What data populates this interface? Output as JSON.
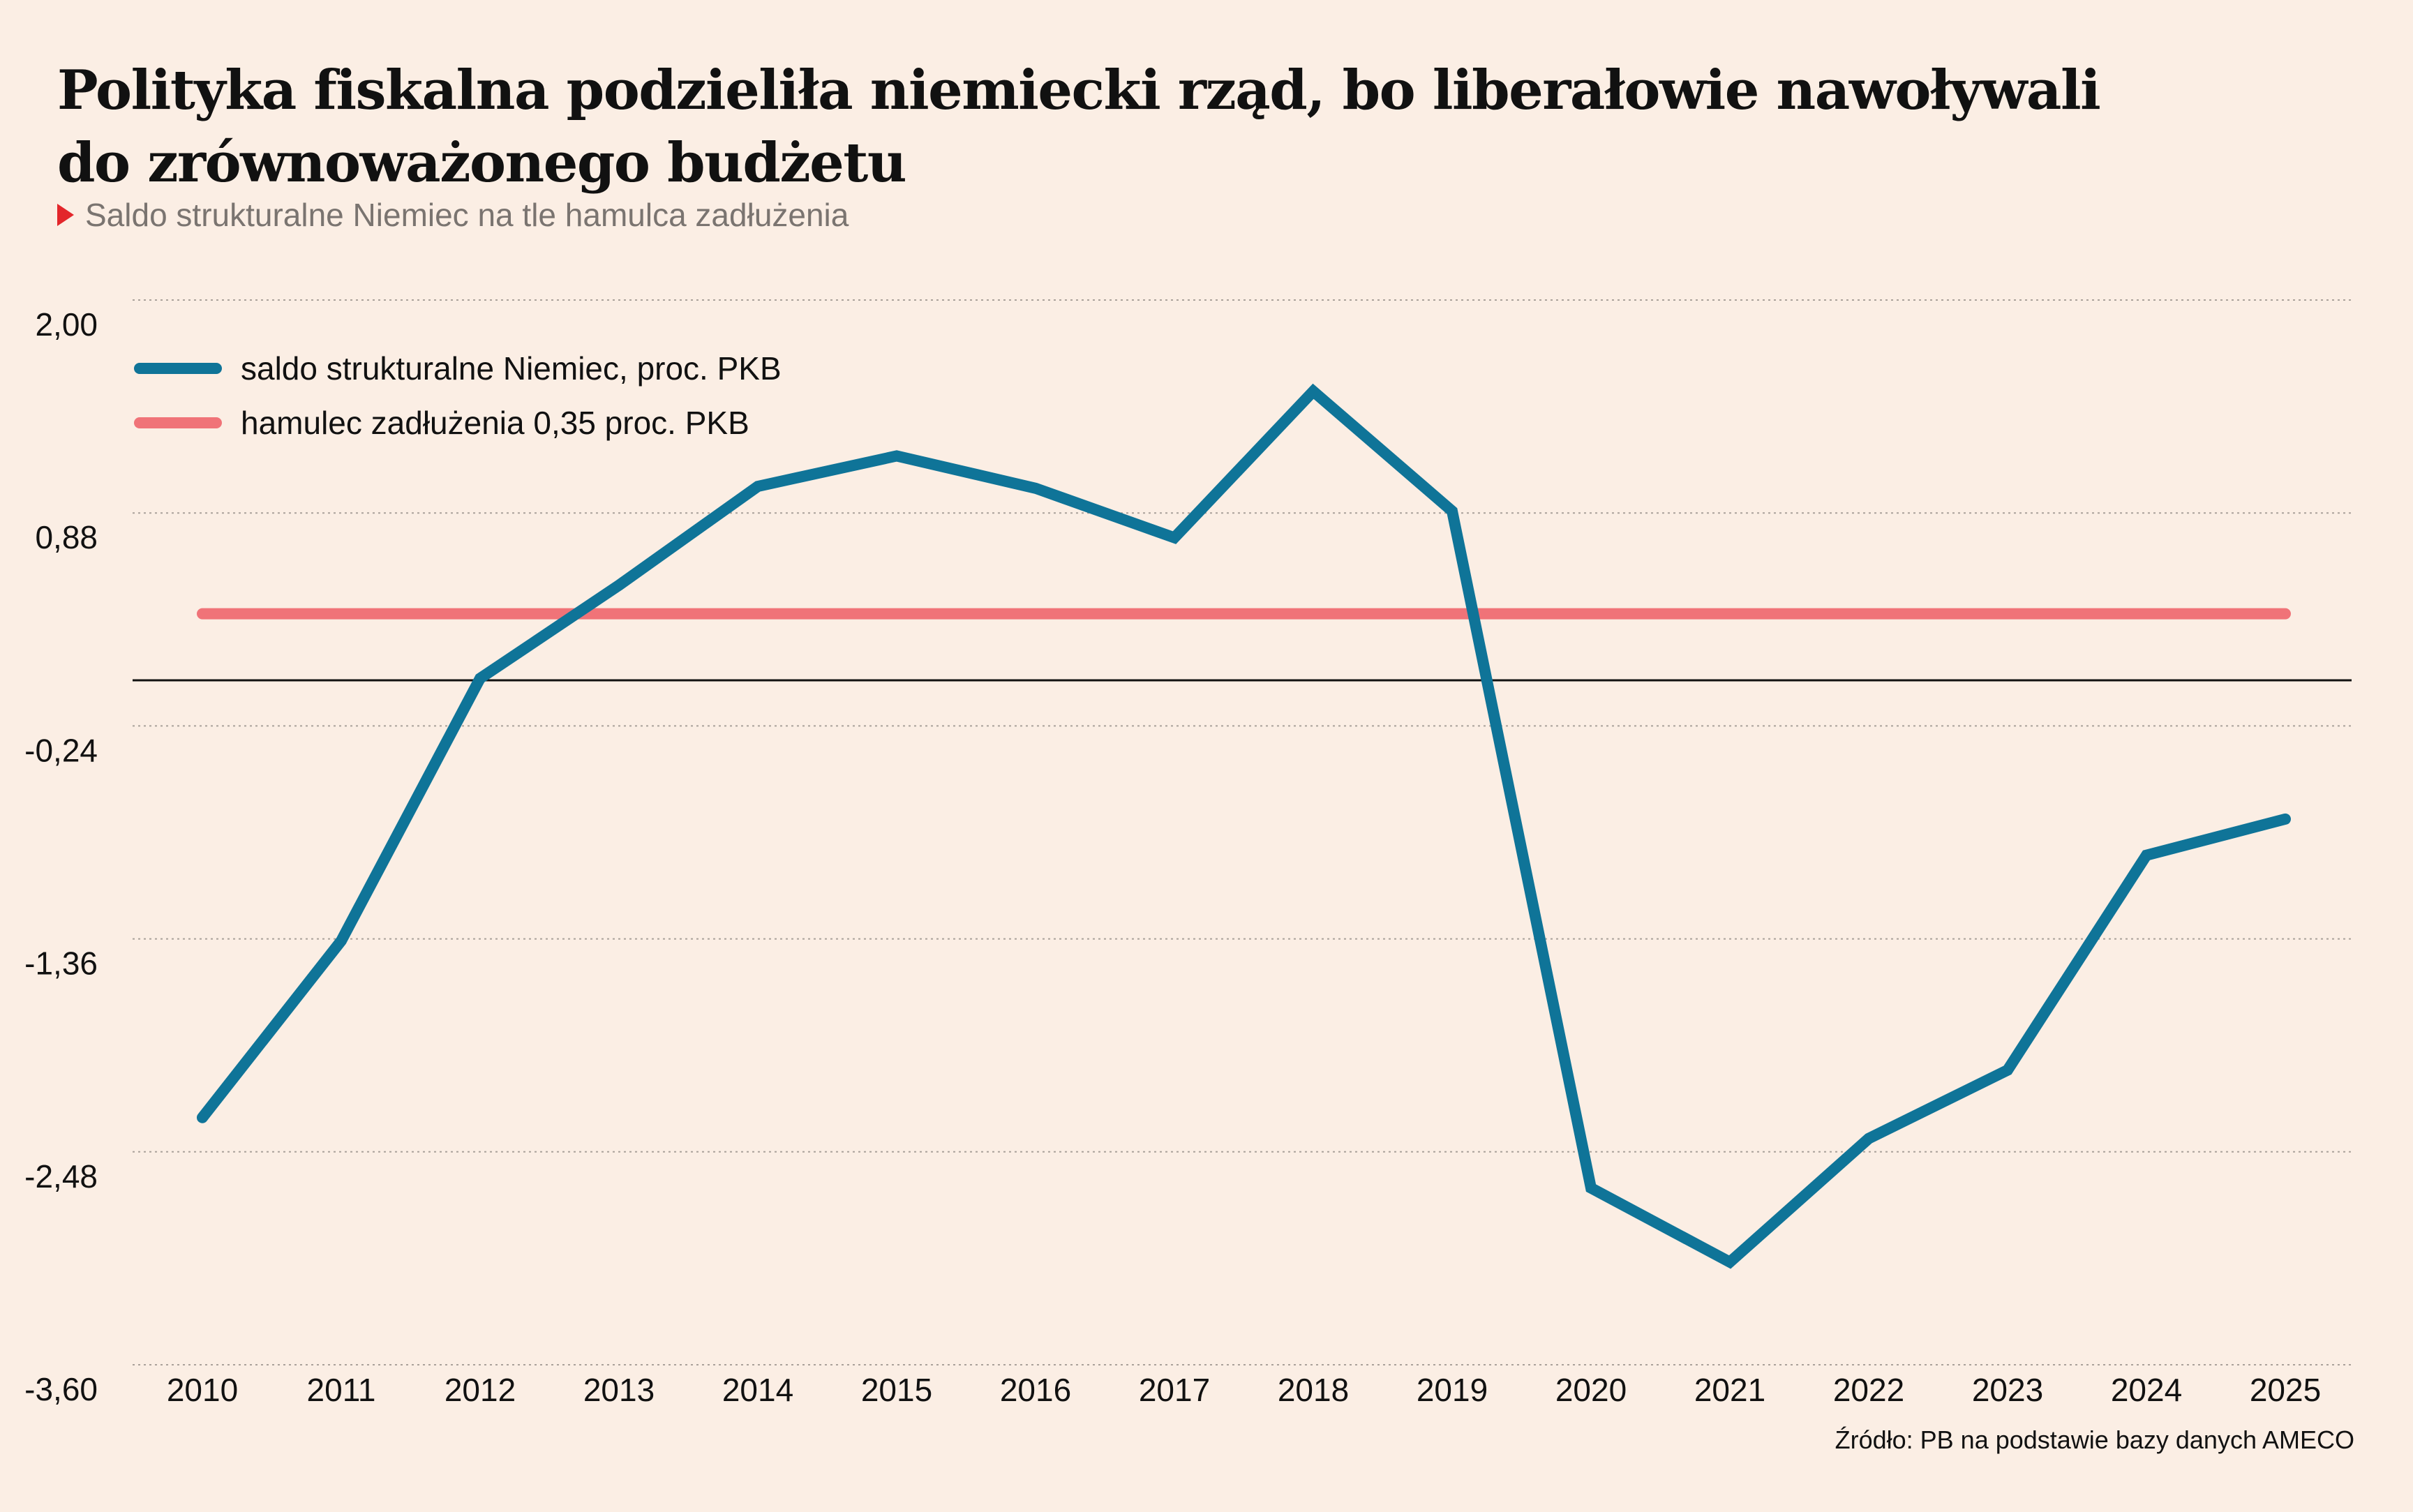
{
  "header": {
    "title_line1": "Polityka fiskalna podzieliła niemiecki rząd, bo liberałowie nawoływali",
    "title_line2": "do zrównoważonego budżetu",
    "subtitle": "Saldo strukturalne Niemiec na tle hamulca zadłużenia"
  },
  "source": "Źródło: PB na podstawie bazy danych AMECO",
  "chart_data": {
    "type": "line",
    "title": "Polityka fiskalna podzieliła niemiecki rząd, bo liberałowie nawoływali do zrównoważonego budżetu",
    "subtitle": "Saldo strukturalne Niemiec na tle hamulca zadłużenia",
    "x": [
      2010,
      2011,
      2012,
      2013,
      2014,
      2015,
      2016,
      2017,
      2018,
      2019,
      2020,
      2021,
      2022,
      2023,
      2024,
      2025
    ],
    "x_tick_labels": [
      "2010",
      "2011",
      "2012",
      "2013",
      "2014",
      "2015",
      "2016",
      "2017",
      "2018",
      "2019",
      "2020",
      "2021",
      "2022",
      "2023",
      "2024",
      "2025"
    ],
    "ylim": [
      -3.6,
      2.0
    ],
    "y_ticks": [
      2.0,
      0.88,
      -0.24,
      -1.36,
      -2.48,
      -3.6
    ],
    "y_tick_labels": [
      "2,00",
      "0,88",
      "-0,24",
      "-1,36",
      "-2,48",
      "-3,60"
    ],
    "grid": true,
    "zero_line": true,
    "legend_position": "top-left",
    "series": [
      {
        "name": "saldo strukturalne Niemiec, proc. PKB",
        "color": "#0f7498",
        "values": [
          -2.3,
          -1.37,
          0.01,
          0.5,
          1.02,
          1.18,
          1.01,
          0.75,
          1.52,
          0.89,
          -2.67,
          -3.06,
          -2.41,
          -2.05,
          -0.92,
          -0.73
        ]
      },
      {
        "name": "hamulec zadłużenia 0,35 proc. PKB",
        "color": "#f07378",
        "values": [
          0.35,
          0.35,
          0.35,
          0.35,
          0.35,
          0.35,
          0.35,
          0.35,
          0.35,
          0.35,
          0.35,
          0.35,
          0.35,
          0.35,
          0.35,
          0.35
        ]
      }
    ]
  }
}
